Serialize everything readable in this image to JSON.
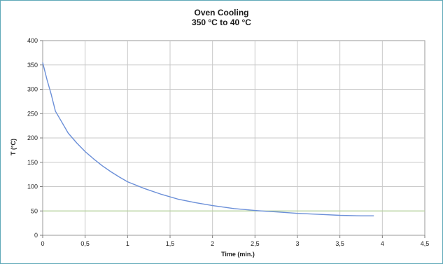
{
  "chart_data": {
    "type": "line",
    "title": "Oven Cooling",
    "subtitle": "350 °C to 40 °C",
    "xlabel": "Time (min.)",
    "ylabel": "T (°C)",
    "xlim": [
      0,
      4.5
    ],
    "ylim": [
      0,
      400
    ],
    "x_ticks": [
      "0",
      "0,5",
      "1",
      "1,5",
      "2",
      "2,5",
      "3",
      "3,5",
      "4",
      "4,5"
    ],
    "y_ticks": [
      "0",
      "50",
      "100",
      "150",
      "200",
      "250",
      "300",
      "350",
      "400"
    ],
    "grid": true,
    "colors": {
      "curve": "#6b8fd8",
      "reference": "#b5d39a",
      "grid": "#c8c8c8",
      "frame": "#5fa8b8"
    },
    "series": [
      {
        "x": [
          0,
          0.05,
          0.1,
          0.15,
          0.2,
          0.3,
          0.4,
          0.5,
          0.6,
          0.7,
          0.8,
          0.9,
          1.0,
          1.2,
          1.4,
          1.6,
          1.8,
          2.0,
          2.25,
          2.5,
          2.75,
          3.0,
          3.25,
          3.5,
          3.75,
          3.9
        ],
        "y": [
          355,
          320,
          290,
          255,
          240,
          210,
          190,
          172,
          157,
          143,
          131,
          120,
          110,
          96,
          84,
          74,
          67,
          61,
          55,
          51,
          48,
          45,
          43,
          41,
          40,
          40
        ]
      }
    ],
    "reference_line": {
      "y": 50
    }
  }
}
